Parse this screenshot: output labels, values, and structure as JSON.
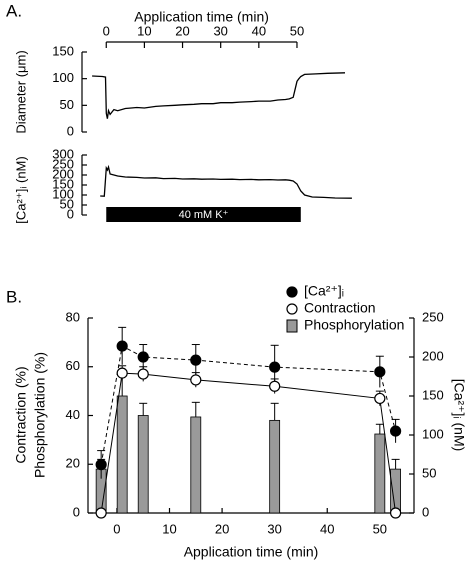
{
  "chart_data": [
    {
      "type": "line",
      "label": "A.",
      "xlabel": "Application time (min)",
      "ylabel": "Diameter (μm)",
      "xlim": [
        -4,
        66
      ],
      "xticks": [
        0,
        10,
        20,
        30,
        40,
        50
      ],
      "ylim": [
        0,
        150
      ],
      "yticks": [
        0,
        50,
        100,
        150
      ],
      "series": [
        {
          "color": "#000000",
          "x": [
            -3.7,
            -1,
            -0.2,
            0,
            0.3,
            0.6,
            1,
            2,
            3,
            5,
            8,
            10,
            13,
            15,
            18,
            20,
            23,
            25,
            28,
            30,
            33,
            35,
            38,
            40,
            43,
            45,
            47,
            48,
            49,
            49.5,
            50,
            50.5,
            51,
            52,
            55,
            58,
            62.6
          ],
          "values": [
            105,
            104,
            103,
            35,
            25,
            40,
            33,
            42,
            40,
            44,
            46,
            45,
            48,
            49,
            50,
            51,
            52,
            53,
            53,
            55,
            55,
            56,
            57,
            58,
            58,
            60,
            61,
            62,
            65,
            80,
            95,
            100,
            104,
            108,
            109,
            110,
            111
          ]
        }
      ]
    },
    {
      "type": "line",
      "ylabel": "[Ca²⁺]ᵢ (nM)",
      "xlim": [
        -4,
        66
      ],
      "ylim": [
        0,
        300
      ],
      "yticks": [
        0,
        50,
        100,
        150,
        200,
        250,
        300
      ],
      "series": [
        {
          "color": "#000000",
          "x": [
            -1.6,
            -0.5,
            0,
            0.3,
            0.6,
            1,
            2,
            3,
            5,
            8,
            10,
            13,
            15,
            18,
            20,
            23,
            25,
            28,
            30,
            33,
            35,
            38,
            40,
            43,
            45,
            47,
            48,
            49,
            50,
            51,
            52,
            54,
            57,
            60,
            64.4
          ],
          "values": [
            95,
            94,
            235,
            225,
            240,
            205,
            200,
            195,
            190,
            188,
            185,
            186,
            182,
            183,
            180,
            181,
            179,
            180,
            178,
            179,
            177,
            178,
            176,
            177,
            175,
            176,
            174,
            170,
            155,
            120,
            100,
            90,
            88,
            85,
            84
          ]
        }
      ],
      "annotation": {
        "text": "40 mM K⁺",
        "x": [
          0,
          51
        ],
        "color": "#000000"
      }
    },
    {
      "type": "combo",
      "label": "B.",
      "xlabel": "Application time (min)",
      "ylabel": [
        "Contraction (%)",
        "Phosphorylation (%)"
      ],
      "y2label": "[Ca²⁺]ᵢ (nM)",
      "xlim": [
        -5.5,
        56.5
      ],
      "xticks": [
        0,
        10,
        20,
        30,
        40,
        50
      ],
      "ylim": [
        0,
        80
      ],
      "yticks": [
        0,
        20,
        40,
        60,
        80
      ],
      "y2lim": [
        0,
        250
      ],
      "y2ticks": [
        0,
        50,
        100,
        150,
        200,
        250
      ],
      "legend": "upper right",
      "x": [
        -3,
        1,
        5,
        15,
        30,
        50,
        53
      ],
      "series": [
        {
          "name": "[Ca²⁺]ᵢ",
          "type": "marker-dashed",
          "fill": "#000000",
          "color": "#000000",
          "axis": "y2",
          "values": [
            62,
            214,
            200,
            196,
            187,
            181,
            105
          ],
          "errors": [
            18,
            24,
            16,
            20,
            28,
            20,
            15
          ]
        },
        {
          "name": "Contraction",
          "type": "marker-solid",
          "fill": "#ffffff",
          "color": "#000000",
          "values": [
            0,
            57.4,
            57,
            54.6,
            52,
            47,
            0
          ],
          "errors": [
            0,
            3,
            3,
            3,
            3,
            3,
            0
          ]
        },
        {
          "name": "Phosphorylation",
          "type": "bar",
          "fill": "#9a9a9a",
          "color": "#000000",
          "values": [
            18,
            48,
            40,
            39.4,
            38,
            32.4,
            18
          ],
          "errors": [
            4,
            8,
            5,
            6,
            7,
            4,
            4
          ]
        }
      ]
    }
  ]
}
